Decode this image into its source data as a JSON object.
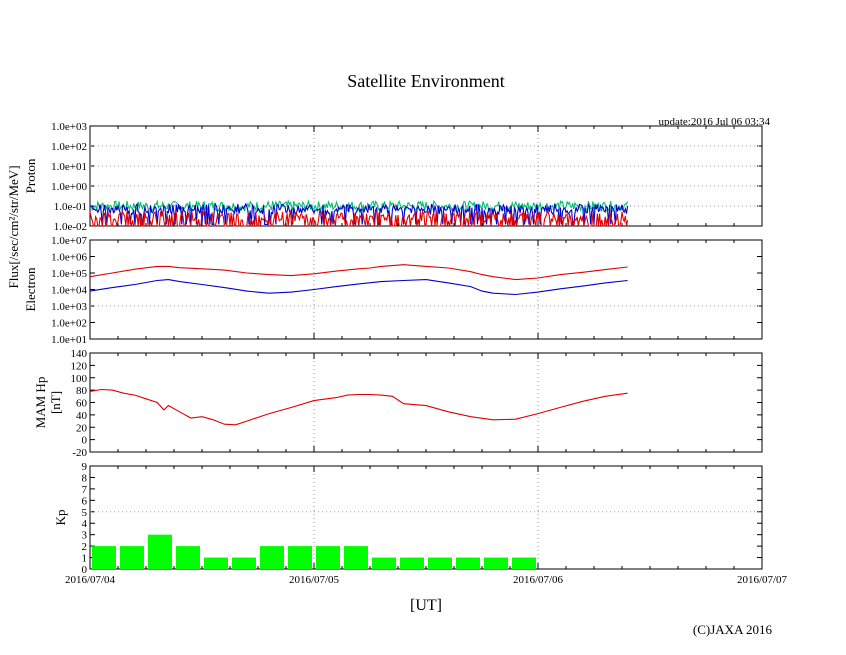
{
  "title": "Satellite Environment",
  "update": "update:2016 Jul 06 03:34",
  "copyright": "(C)JAXA 2016",
  "xlabel": "[UT]",
  "flux_label": "Flux[/sec/cm²/str/MeV]",
  "colors": {
    "red": "#e00000",
    "blue": "#0000d0",
    "green": "#00c070",
    "kp_bar": "#00ff00",
    "grid": "#999999"
  },
  "chart_data": [
    {
      "id": "proton",
      "type": "line",
      "ylabel": "Proton",
      "yscale": "log",
      "ylim": [
        0.01,
        1000
      ],
      "ytick_labels": [
        "1.0e+03",
        "1.0e+02",
        "1.0e+01",
        "1.0e+00",
        "1.0e-01",
        "1.0e-02"
      ],
      "xlim": [
        0,
        3
      ],
      "series": [
        {
          "name": "proton-green",
          "color": "green",
          "x": [
            0,
            2.4
          ],
          "y": [
            0.1,
            0.1
          ]
        },
        {
          "name": "proton-blue",
          "color": "blue",
          "x": [
            0,
            2.4
          ],
          "y": [
            0.07,
            0.07
          ]
        },
        {
          "name": "proton-red",
          "color": "red",
          "x": [
            0,
            2.4
          ],
          "y": [
            0.03,
            0.03
          ]
        }
      ]
    },
    {
      "id": "electron",
      "type": "line",
      "ylabel": "Electron",
      "yscale": "log",
      "ylim": [
        10,
        10000000
      ],
      "ytick_labels": [
        "1.0e+07",
        "1.0e+06",
        "1.0e+05",
        "1.0e+04",
        "1.0e+03",
        "1.0e+02",
        "1.0e+01"
      ],
      "xlim": [
        0,
        3
      ],
      "series": [
        {
          "name": "electron-high",
          "color": "red",
          "x": [
            0,
            0.1,
            0.2,
            0.3,
            0.35,
            0.4,
            0.5,
            0.6,
            0.7,
            0.8,
            0.9,
            1.0,
            1.1,
            1.2,
            1.25,
            1.3,
            1.4,
            1.5,
            1.6,
            1.7,
            1.75,
            1.8,
            1.9,
            2.0,
            2.1,
            2.2,
            2.3,
            2.4
          ],
          "y": [
            60000,
            100000,
            170000,
            250000,
            250000,
            210000,
            180000,
            150000,
            100000,
            80000,
            70000,
            90000,
            130000,
            180000,
            200000,
            250000,
            320000,
            250000,
            200000,
            120000,
            80000,
            60000,
            40000,
            50000,
            80000,
            110000,
            160000,
            230000
          ]
        },
        {
          "name": "electron-low",
          "color": "blue",
          "x": [
            0,
            0.1,
            0.2,
            0.3,
            0.35,
            0.4,
            0.5,
            0.6,
            0.7,
            0.8,
            0.9,
            1.0,
            1.1,
            1.2,
            1.3,
            1.4,
            1.5,
            1.6,
            1.7,
            1.75,
            1.8,
            1.9,
            2.0,
            2.1,
            2.2,
            2.3,
            2.4
          ],
          "y": [
            8000,
            13000,
            20000,
            35000,
            40000,
            30000,
            20000,
            13000,
            8000,
            6000,
            7000,
            10000,
            15000,
            22000,
            30000,
            35000,
            40000,
            25000,
            15000,
            8000,
            6000,
            5000,
            7000,
            11000,
            16000,
            25000,
            35000
          ]
        }
      ]
    },
    {
      "id": "mam-hp",
      "type": "line",
      "ylabel": "MAM Hp",
      "ylabel2": "[nT]",
      "ylim": [
        -20,
        140
      ],
      "yticks": [
        140,
        120,
        100,
        80,
        60,
        40,
        20,
        0,
        -20
      ],
      "xlim": [
        0,
        3
      ],
      "series": [
        {
          "name": "hp",
          "color": "red",
          "x": [
            0,
            0.05,
            0.1,
            0.15,
            0.2,
            0.25,
            0.3,
            0.33,
            0.35,
            0.4,
            0.45,
            0.5,
            0.55,
            0.6,
            0.65,
            0.7,
            0.8,
            0.9,
            1.0,
            1.1,
            1.15,
            1.2,
            1.25,
            1.3,
            1.35,
            1.4,
            1.5,
            1.6,
            1.7,
            1.8,
            1.9,
            2.0,
            2.1,
            2.2,
            2.3,
            2.4
          ],
          "y": [
            78,
            81,
            80,
            75,
            72,
            66,
            60,
            48,
            55,
            45,
            35,
            37,
            32,
            25,
            24,
            30,
            42,
            52,
            63,
            68,
            72,
            73,
            73,
            72,
            70,
            58,
            55,
            45,
            37,
            32,
            33,
            42,
            52,
            62,
            70,
            75
          ]
        }
      ]
    },
    {
      "id": "kp",
      "type": "bar",
      "ylabel": "Kp",
      "ylim": [
        0,
        9
      ],
      "yticks": [
        9,
        8,
        7,
        6,
        5,
        4,
        3,
        2,
        1,
        0
      ],
      "xlim": [
        0,
        3
      ],
      "bar_width": 0.125,
      "x": [
        0.0625,
        0.1875,
        0.3125,
        0.4375,
        0.5625,
        0.6875,
        0.8125,
        0.9375,
        1.0625,
        1.1875,
        1.3125,
        1.4375,
        1.5625,
        1.6875,
        1.8125,
        1.9375
      ],
      "values": [
        2,
        2,
        3,
        2,
        1,
        1,
        2,
        2,
        2,
        2,
        1,
        1,
        1,
        1,
        1,
        1
      ],
      "xtick_labels": [
        "2016/07/04",
        "2016/07/05",
        "2016/07/06",
        "2016/07/07"
      ],
      "xticks": [
        0,
        1,
        2,
        3
      ]
    }
  ]
}
